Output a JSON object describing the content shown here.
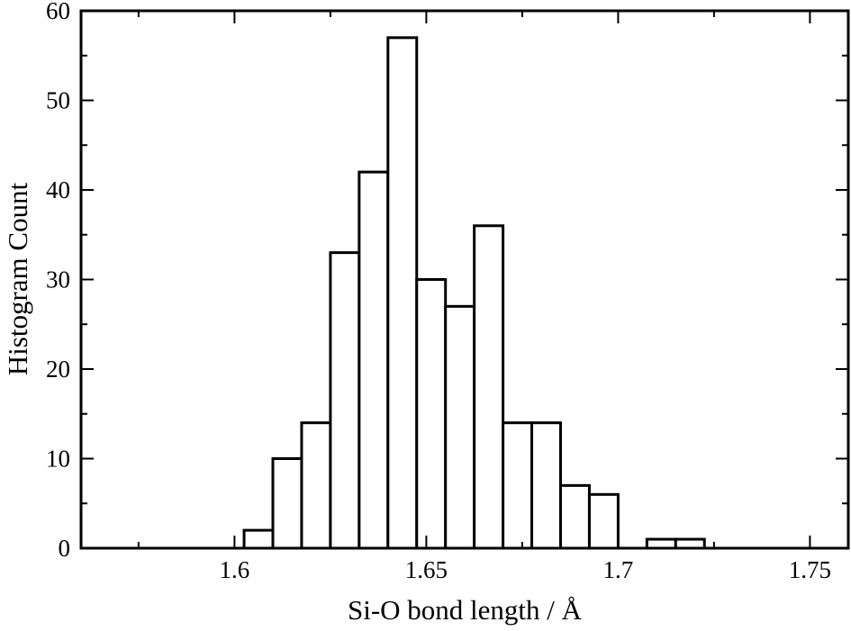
{
  "chart_data": {
    "type": "bar",
    "xlabel": "Si-O bond length / Å",
    "ylabel": "Histogram Count",
    "xlim": [
      1.56,
      1.76
    ],
    "ylim": [
      0,
      60
    ],
    "bin_width": 0.0075,
    "bins": [
      {
        "x0": 1.6025,
        "count": 2
      },
      {
        "x0": 1.61,
        "count": 10
      },
      {
        "x0": 1.6175,
        "count": 14
      },
      {
        "x0": 1.625,
        "count": 33
      },
      {
        "x0": 1.6325,
        "count": 42
      },
      {
        "x0": 1.64,
        "count": 57
      },
      {
        "x0": 1.6475,
        "count": 30
      },
      {
        "x0": 1.655,
        "count": 27
      },
      {
        "x0": 1.6625,
        "count": 36
      },
      {
        "x0": 1.67,
        "count": 14
      },
      {
        "x0": 1.6775,
        "count": 14
      },
      {
        "x0": 1.685,
        "count": 7
      },
      {
        "x0": 1.6925,
        "count": 6
      },
      {
        "x0": 1.7,
        "count": 0
      },
      {
        "x0": 1.7075,
        "count": 1
      },
      {
        "x0": 1.715,
        "count": 1
      }
    ],
    "x_ticks": [
      {
        "value": 1.6,
        "label": "1.6"
      },
      {
        "value": 1.65,
        "label": "1.65"
      },
      {
        "value": 1.7,
        "label": "1.7"
      },
      {
        "value": 1.75,
        "label": "1.75"
      }
    ],
    "x_minor_ticks": [
      1.575,
      1.625,
      1.675,
      1.725
    ],
    "y_ticks": [
      {
        "value": 0,
        "label": "0"
      },
      {
        "value": 10,
        "label": "10"
      },
      {
        "value": 20,
        "label": "20"
      },
      {
        "value": 30,
        "label": "30"
      },
      {
        "value": 40,
        "label": "40"
      },
      {
        "value": 50,
        "label": "50"
      },
      {
        "value": 60,
        "label": "60"
      }
    ],
    "y_minor_ticks": [
      5,
      15,
      25,
      35,
      45,
      55
    ],
    "grid": false,
    "legend": "none"
  }
}
